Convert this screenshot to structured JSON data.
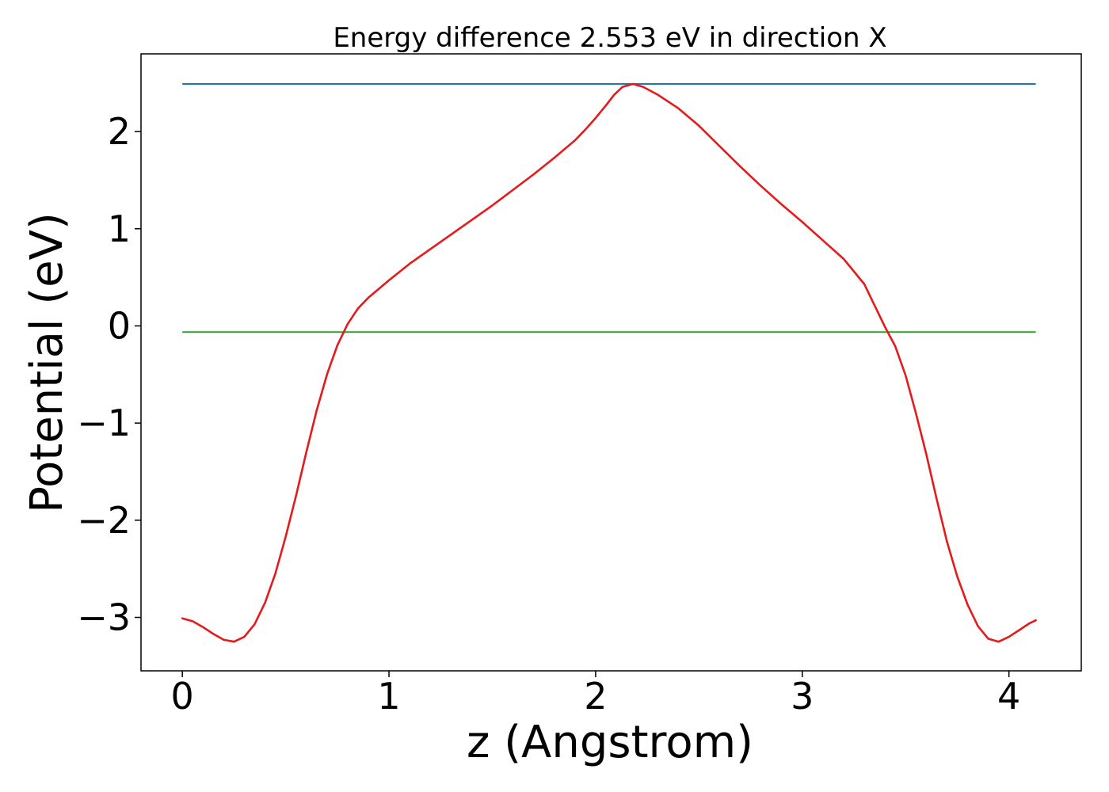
{
  "chart_data": {
    "type": "line",
    "title": "Energy difference 2.553 eV in direction X",
    "xlabel": "z (Angstrom)",
    "ylabel": "Potential (eV)",
    "xlim": [
      -0.2,
      4.35
    ],
    "ylim": [
      -3.55,
      2.8
    ],
    "xticks": [
      0,
      1,
      2,
      3,
      4
    ],
    "xtick_labels": [
      "0",
      "1",
      "2",
      "3",
      "4"
    ],
    "yticks": [
      -3,
      -2,
      -1,
      0,
      1,
      2
    ],
    "ytick_labels": [
      "−3",
      "−2",
      "−1",
      "0",
      "1",
      "2"
    ],
    "grid": false,
    "legend": "none",
    "hlines": [
      {
        "y": 2.49,
        "xmin": 0,
        "xmax": 4.13,
        "color": "#1f77b4"
      },
      {
        "y": -0.063,
        "xmin": 0,
        "xmax": 4.13,
        "color": "#2ca02c"
      }
    ],
    "series": [
      {
        "color": "#e41a1c",
        "x": [
          0,
          0.05,
          0.1,
          0.15,
          0.2,
          0.25,
          0.3,
          0.35,
          0.4,
          0.45,
          0.5,
          0.55,
          0.6,
          0.65,
          0.7,
          0.75,
          0.8,
          0.85,
          0.9,
          1.0,
          1.1,
          1.2,
          1.3,
          1.4,
          1.5,
          1.6,
          1.7,
          1.8,
          1.9,
          1.95,
          2.0,
          2.05,
          2.09,
          2.13,
          2.18,
          2.23,
          2.3,
          2.4,
          2.5,
          2.6,
          2.7,
          2.8,
          2.9,
          3.0,
          3.1,
          3.2,
          3.3,
          3.35,
          3.4,
          3.45,
          3.5,
          3.55,
          3.6,
          3.65,
          3.7,
          3.75,
          3.8,
          3.85,
          3.9,
          3.95,
          4.0,
          4.05,
          4.1,
          4.13
        ],
        "y": [
          -3.01,
          -3.04,
          -3.1,
          -3.17,
          -3.23,
          -3.25,
          -3.2,
          -3.07,
          -2.85,
          -2.55,
          -2.17,
          -1.75,
          -1.3,
          -0.87,
          -0.5,
          -0.2,
          0.02,
          0.18,
          0.29,
          0.47,
          0.64,
          0.79,
          0.94,
          1.09,
          1.24,
          1.4,
          1.56,
          1.73,
          1.91,
          2.02,
          2.14,
          2.27,
          2.38,
          2.46,
          2.49,
          2.46,
          2.38,
          2.24,
          2.06,
          1.85,
          1.64,
          1.44,
          1.25,
          1.07,
          0.88,
          0.69,
          0.43,
          0.21,
          -0.01,
          -0.21,
          -0.51,
          -0.9,
          -1.32,
          -1.78,
          -2.22,
          -2.58,
          -2.87,
          -3.09,
          -3.22,
          -3.25,
          -3.2,
          -3.13,
          -3.06,
          -3.03
        ]
      }
    ]
  }
}
